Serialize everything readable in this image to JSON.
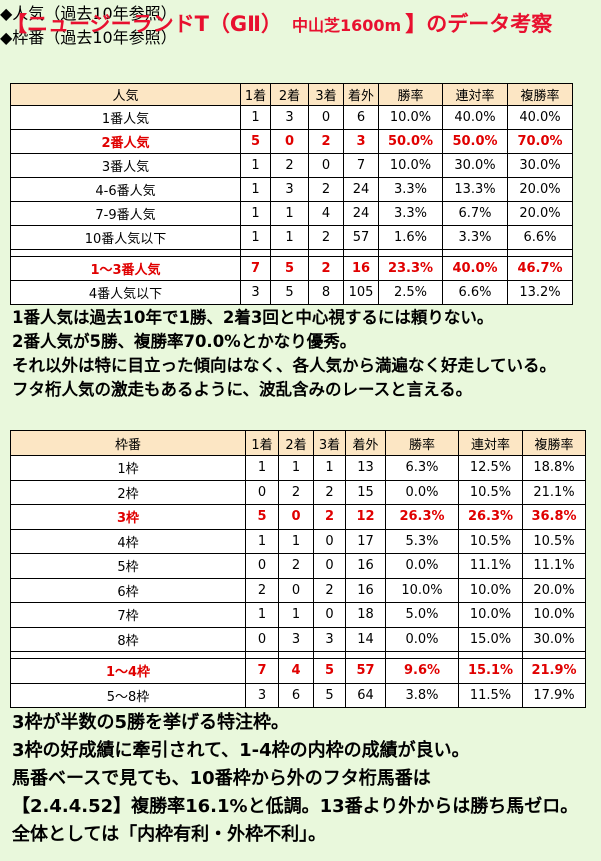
{
  "title": {
    "part1": "【ニュージーランドT（GⅡ）",
    "part2": "中山芝1600m",
    "part3": "】のデータ考察"
  },
  "sections": [
    {
      "heading": "◆人気",
      "heading_note": "（過去10年参照）",
      "table": {
        "header": [
          "人気",
          "1着",
          "2着",
          "3着",
          "着外",
          "勝率",
          "連対率",
          "複勝率"
        ],
        "rows": [
          [
            "1番人気",
            "1",
            "3",
            "0",
            "6",
            "10.0%",
            "40.0%",
            "40.0%"
          ],
          [
            "2番人気",
            "5",
            "0",
            "2",
            "3",
            "50.0%",
            "50.0%",
            "70.0%"
          ],
          [
            "3番人気",
            "1",
            "2",
            "0",
            "7",
            "10.0%",
            "30.0%",
            "30.0%"
          ],
          [
            "4-6番人気",
            "1",
            "3",
            "2",
            "24",
            "3.3%",
            "13.3%",
            "20.0%"
          ],
          [
            "7-9番人気",
            "1",
            "1",
            "4",
            "24",
            "3.3%",
            "6.7%",
            "20.0%"
          ],
          [
            "10番人気以下",
            "1",
            "1",
            "2",
            "57",
            "1.6%",
            "3.3%",
            "6.6%"
          ]
        ],
        "summary_rows": [
          [
            "1～3番人気",
            "7",
            "5",
            "2",
            "16",
            "23.3%",
            "40.0%",
            "46.7%"
          ],
          [
            "4番人気以下",
            "3",
            "5",
            "8",
            "105",
            "2.5%",
            "6.6%",
            "13.2%"
          ]
        ],
        "highlight_rows": [
          1,
          6
        ]
      },
      "comments": [
        "1番人気は過去10年で1勝、2着3回と中心視するには頼りない。",
        "2番人気が5勝、複勝率70.0%とかなり優秀。",
        "それ以外は特に目立った傾向はなく、各人気から満遍なく好走している。",
        "フタ桁人気の激走もあるように、波乱含みのレースと言える。"
      ]
    },
    {
      "heading": "◆枠番",
      "heading_note": "（過去10年参照）",
      "table": {
        "header": [
          "枠番",
          "1着",
          "2着",
          "3着",
          "着外",
          "勝率",
          "連対率",
          "複勝率"
        ],
        "rows": [
          [
            "1枠",
            "1",
            "1",
            "1",
            "13",
            "6.3%",
            "12.5%",
            "18.8%"
          ],
          [
            "2枠",
            "0",
            "2",
            "2",
            "15",
            "0.0%",
            "10.5%",
            "21.1%"
          ],
          [
            "3枠",
            "5",
            "0",
            "2",
            "12",
            "26.3%",
            "26.3%",
            "36.8%"
          ],
          [
            "4枠",
            "1",
            "1",
            "0",
            "17",
            "5.3%",
            "10.5%",
            "10.5%"
          ],
          [
            "5枠",
            "0",
            "2",
            "0",
            "16",
            "0.0%",
            "11.1%",
            "11.1%"
          ],
          [
            "6枠",
            "2",
            "0",
            "2",
            "16",
            "10.0%",
            "10.0%",
            "20.0%"
          ],
          [
            "7枠",
            "1",
            "1",
            "0",
            "18",
            "5.0%",
            "10.0%",
            "10.0%"
          ],
          [
            "8枠",
            "0",
            "3",
            "3",
            "14",
            "0.0%",
            "15.0%",
            "30.0%"
          ]
        ],
        "summary_rows": [
          [
            "1～4枠",
            "7",
            "4",
            "5",
            "57",
            "9.6%",
            "15.1%",
            "21.9%"
          ],
          [
            "5～8枠",
            "3",
            "6",
            "5",
            "64",
            "3.8%",
            "11.5%",
            "17.9%"
          ]
        ],
        "highlight_rows": [
          2,
          8
        ]
      },
      "comments": [
        "3枠が半数の5勝を挙げる特注枠。",
        "3枠の好成績に牽引されて、1-4枠の内枠の成績が良い。",
        "馬番ベースで見ても、10番枠から外のフタ桁馬番は",
        "【2.4.4.52】複勝率16.1%と低調。13番より外からは勝ち馬ゼロ。",
        "全体としては「内枠有利・外枠不利」。"
      ]
    }
  ]
}
